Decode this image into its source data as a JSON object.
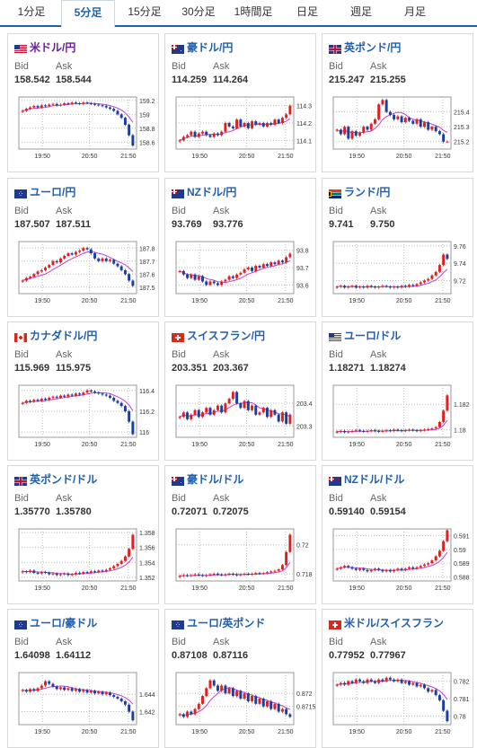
{
  "tabs": [
    {
      "label": "1分足",
      "active": false
    },
    {
      "label": "5分足",
      "active": true
    },
    {
      "label": "15分足",
      "active": false
    },
    {
      "label": "30分足",
      "active": false
    },
    {
      "label": "1時間足",
      "active": false
    },
    {
      "label": "日足",
      "active": false
    },
    {
      "label": "週足",
      "active": false
    },
    {
      "label": "月足",
      "active": false
    }
  ],
  "labels": {
    "bid": "Bid",
    "ask": "Ask"
  },
  "colors": {
    "up": "#e02020",
    "down": "#1a3fa0",
    "ma": "#c040d0",
    "pair_link": "#1f5fb0",
    "pair_highlight": "#6a1b9a"
  },
  "cards": [
    {
      "pair": "米ドル/円",
      "flag": "us",
      "highlight": true,
      "bid": "158.542",
      "ask": "158.544",
      "chart_data": {
        "type": "candlestick",
        "ylim": [
          158.5,
          159.25
        ],
        "yticks": [
          "159.2",
          "159",
          "158.8",
          "158.6"
        ],
        "ytick_values": [
          159.2,
          159.0,
          158.8,
          158.6
        ],
        "xticks": [
          "19:50",
          "20:50",
          "21:50"
        ],
        "close": [
          159.05,
          159.08,
          159.1,
          159.12,
          159.1,
          159.13,
          159.12,
          159.14,
          159.15,
          159.13,
          159.14,
          159.16,
          159.15,
          159.17,
          159.16,
          159.15,
          159.17,
          159.16,
          159.15,
          159.14,
          159.13,
          159.12,
          159.1,
          159.08,
          159.05,
          159.0,
          158.95,
          158.85,
          158.7,
          158.55
        ]
      }
    },
    {
      "pair": "豪ドル/円",
      "flag": "au",
      "highlight": false,
      "bid": "114.259",
      "ask": "114.264",
      "chart_data": {
        "type": "candlestick",
        "ylim": [
          114.05,
          114.35
        ],
        "yticks": [
          "114.3",
          "114.2",
          "114.1"
        ],
        "ytick_values": [
          114.3,
          114.2,
          114.1
        ],
        "xticks": [
          "19:50",
          "20:50",
          "21:50"
        ],
        "close": [
          114.1,
          114.12,
          114.13,
          114.15,
          114.12,
          114.14,
          114.15,
          114.13,
          114.12,
          114.14,
          114.13,
          114.15,
          114.2,
          114.18,
          114.17,
          114.22,
          114.18,
          114.2,
          114.17,
          114.21,
          114.19,
          114.2,
          114.18,
          114.2,
          114.19,
          114.22,
          114.2,
          114.23,
          114.25,
          114.3
        ]
      }
    },
    {
      "pair": "英ポンド/円",
      "flag": "gb",
      "highlight": false,
      "bid": "215.247",
      "ask": "215.255",
      "chart_data": {
        "type": "candlestick",
        "ylim": [
          215.15,
          215.5
        ],
        "yticks": [
          "215.4",
          "215.3",
          "215.2"
        ],
        "ytick_values": [
          215.4,
          215.3,
          215.2
        ],
        "xticks": [
          "19:50",
          "20:50",
          "21:50"
        ],
        "close": [
          215.28,
          215.25,
          215.3,
          215.22,
          215.27,
          215.24,
          215.26,
          215.3,
          215.28,
          215.32,
          215.35,
          215.45,
          215.48,
          215.4,
          215.38,
          215.35,
          215.37,
          215.33,
          215.36,
          215.34,
          215.32,
          215.35,
          215.3,
          215.33,
          215.28,
          215.3,
          215.27,
          215.25,
          215.2,
          215.2
        ]
      }
    },
    {
      "pair": "ユーロ/円",
      "flag": "eu",
      "highlight": false,
      "bid": "187.507",
      "ask": "187.511",
      "chart_data": {
        "type": "candlestick",
        "ylim": [
          187.45,
          187.85
        ],
        "yticks": [
          "187.8",
          "187.7",
          "187.6",
          "187.5"
        ],
        "ytick_values": [
          187.8,
          187.7,
          187.6,
          187.5
        ],
        "xticks": [
          "19:50",
          "20:50",
          "21:50"
        ],
        "close": [
          187.55,
          187.57,
          187.58,
          187.6,
          187.62,
          187.63,
          187.65,
          187.67,
          187.7,
          187.69,
          187.72,
          187.74,
          187.76,
          187.75,
          187.77,
          187.78,
          187.8,
          187.79,
          187.76,
          187.72,
          187.7,
          187.72,
          187.7,
          187.71,
          187.68,
          187.66,
          187.63,
          187.6,
          187.55,
          187.51
        ]
      }
    },
    {
      "pair": "NZドル/円",
      "flag": "nz",
      "highlight": false,
      "bid": "93.769",
      "ask": "93.776",
      "chart_data": {
        "type": "candlestick",
        "ylim": [
          93.55,
          93.85
        ],
        "yticks": [
          "93.8",
          "93.7",
          "93.6"
        ],
        "ytick_values": [
          93.8,
          93.7,
          93.6
        ],
        "xticks": [
          "19:50",
          "20:50",
          "21:50"
        ],
        "close": [
          93.68,
          93.66,
          93.64,
          93.66,
          93.63,
          93.65,
          93.62,
          93.6,
          93.62,
          93.61,
          93.6,
          93.62,
          93.63,
          93.65,
          93.64,
          93.66,
          93.67,
          93.69,
          93.7,
          93.68,
          93.71,
          93.7,
          93.72,
          93.71,
          93.73,
          93.72,
          93.74,
          93.73,
          93.76,
          93.78
        ]
      }
    },
    {
      "pair": "ランド/円",
      "flag": "za",
      "highlight": false,
      "bid": "9.741",
      "ask": "9.750",
      "chart_data": {
        "type": "candlestick",
        "ylim": [
          9.705,
          9.765
        ],
        "yticks": [
          "9.76",
          "9.74",
          "9.72"
        ],
        "ytick_values": [
          9.76,
          9.74,
          9.72
        ],
        "xticks": [
          "19:50",
          "20:50",
          "21:50"
        ],
        "close": [
          9.713,
          9.714,
          9.712,
          9.713,
          9.714,
          9.712,
          9.713,
          9.712,
          9.714,
          9.713,
          9.712,
          9.713,
          9.714,
          9.713,
          9.712,
          9.713,
          9.712,
          9.714,
          9.713,
          9.715,
          9.714,
          9.716,
          9.718,
          9.72,
          9.722,
          9.726,
          9.73,
          9.738,
          9.75,
          9.745
        ]
      }
    },
    {
      "pair": "カナダドル/円",
      "flag": "ca",
      "highlight": false,
      "bid": "115.969",
      "ask": "115.975",
      "chart_data": {
        "type": "candlestick",
        "ylim": [
          115.95,
          116.45
        ],
        "yticks": [
          "116.4",
          "116.2",
          "116"
        ],
        "ytick_values": [
          116.4,
          116.2,
          116.0
        ],
        "xticks": [
          "19:50",
          "20:50",
          "21:50"
        ],
        "close": [
          116.28,
          116.3,
          116.29,
          116.31,
          116.3,
          116.32,
          116.31,
          116.33,
          116.34,
          116.33,
          116.35,
          116.34,
          116.36,
          116.35,
          116.37,
          116.36,
          116.38,
          116.4,
          116.39,
          116.38,
          116.37,
          116.36,
          116.35,
          116.33,
          116.3,
          116.28,
          116.25,
          116.2,
          116.1,
          115.98
        ]
      }
    },
    {
      "pair": "スイスフラン/円",
      "flag": "ch",
      "highlight": false,
      "bid": "203.351",
      "ask": "203.367",
      "chart_data": {
        "type": "candlestick",
        "ylim": [
          203.25,
          203.48
        ],
        "yticks": [
          "203.4",
          "203.3"
        ],
        "ytick_values": [
          203.4,
          203.3
        ],
        "xticks": [
          "19:50",
          "20:50",
          "21:50"
        ],
        "close": [
          203.34,
          203.36,
          203.33,
          203.35,
          203.37,
          203.34,
          203.36,
          203.38,
          203.35,
          203.37,
          203.39,
          203.36,
          203.4,
          203.42,
          203.45,
          203.4,
          203.38,
          203.41,
          203.37,
          203.39,
          203.35,
          203.36,
          203.38,
          203.34,
          203.37,
          203.35,
          203.32,
          203.36,
          203.31,
          203.35
        ]
      }
    },
    {
      "pair": "ユーロ/ドル",
      "flag": "us",
      "highlight": false,
      "bid": "1.18271",
      "ask": "1.18274",
      "chart_data": {
        "type": "candlestick",
        "ylim": [
          1.1794,
          1.1835
        ],
        "yticks": [
          "1.182",
          "1.18"
        ],
        "ytick_values": [
          1.182,
          1.18
        ],
        "xticks": [
          "19:50",
          "20:50",
          "21:50"
        ],
        "close": [
          1.17985,
          1.1799,
          1.1798,
          1.17985,
          1.1799,
          1.17995,
          1.1799,
          1.17985,
          1.1799,
          1.17995,
          1.1799,
          1.17985,
          1.1799,
          1.17995,
          1.1799,
          1.18,
          1.17995,
          1.1799,
          1.17995,
          1.18,
          1.17995,
          1.1799,
          1.17995,
          1.18,
          1.18005,
          1.1801,
          1.1802,
          1.1806,
          1.1815,
          1.1827
        ]
      }
    },
    {
      "pair": "英ポンド/ドル",
      "flag": "gb",
      "highlight": false,
      "bid": "1.35770",
      "ask": "1.35780",
      "chart_data": {
        "type": "candlestick",
        "ylim": [
          1.3515,
          1.3585
        ],
        "yticks": [
          "1.358",
          "1.356",
          "1.354",
          "1.352"
        ],
        "ytick_values": [
          1.358,
          1.356,
          1.354,
          1.352
        ],
        "xticks": [
          "19:50",
          "20:50",
          "21:50"
        ],
        "close": [
          1.3528,
          1.3527,
          1.3529,
          1.3526,
          1.3525,
          1.3527,
          1.3526,
          1.3524,
          1.3525,
          1.3523,
          1.3524,
          1.3525,
          1.3523,
          1.3524,
          1.3526,
          1.3525,
          1.3527,
          1.3526,
          1.3528,
          1.3527,
          1.3529,
          1.3528,
          1.353,
          1.3532,
          1.3535,
          1.3538,
          1.3542,
          1.3548,
          1.3558,
          1.3577
        ]
      }
    },
    {
      "pair": "豪ドル/ドル",
      "flag": "au",
      "highlight": false,
      "bid": "0.72071",
      "ask": "0.72075",
      "chart_data": {
        "type": "candlestick",
        "ylim": [
          0.7175,
          0.7211
        ],
        "yticks": [
          "0.72",
          "0.718"
        ],
        "ytick_values": [
          0.72,
          0.718
        ],
        "xticks": [
          "19:50",
          "20:50",
          "21:50"
        ],
        "close": [
          0.71785,
          0.7179,
          0.71785,
          0.7179,
          0.71795,
          0.7179,
          0.71785,
          0.7179,
          0.71795,
          0.718,
          0.71795,
          0.7179,
          0.71795,
          0.718,
          0.71795,
          0.7179,
          0.71795,
          0.718,
          0.71795,
          0.718,
          0.71805,
          0.718,
          0.71805,
          0.7181,
          0.71815,
          0.7182,
          0.7183,
          0.7186,
          0.7195,
          0.7207
        ]
      }
    },
    {
      "pair": "NZドル/ドル",
      "flag": "nz",
      "highlight": false,
      "bid": "0.59140",
      "ask": "0.59154",
      "chart_data": {
        "type": "candlestick",
        "ylim": [
          0.5877,
          0.5915
        ],
        "yticks": [
          "0.591",
          "0.59",
          "0.589",
          "0.588"
        ],
        "ytick_values": [
          0.591,
          0.59,
          0.589,
          0.588
        ],
        "xticks": [
          "19:50",
          "20:50",
          "21:50"
        ],
        "close": [
          0.5886,
          0.5887,
          0.5888,
          0.5887,
          0.5886,
          0.5885,
          0.5886,
          0.5885,
          0.5884,
          0.5885,
          0.5886,
          0.5885,
          0.5884,
          0.5885,
          0.5884,
          0.5885,
          0.5886,
          0.5885,
          0.5886,
          0.5887,
          0.5886,
          0.5887,
          0.5888,
          0.5889,
          0.589,
          0.5892,
          0.5895,
          0.5899,
          0.5906,
          0.5914
        ]
      }
    },
    {
      "pair": "ユーロ/豪ドル",
      "flag": "eu",
      "highlight": false,
      "bid": "1.64098",
      "ask": "1.64112",
      "chart_data": {
        "type": "candlestick",
        "ylim": [
          1.6405,
          1.6465
        ],
        "yticks": [
          "1.644",
          "1.642"
        ],
        "ytick_values": [
          1.644,
          1.642
        ],
        "xticks": [
          "19:50",
          "20:50",
          "21:50"
        ],
        "close": [
          1.6445,
          1.6443,
          1.6446,
          1.6444,
          1.6447,
          1.645,
          1.6455,
          1.6452,
          1.6449,
          1.6446,
          1.6448,
          1.6445,
          1.6447,
          1.6444,
          1.6446,
          1.6443,
          1.6445,
          1.6442,
          1.6444,
          1.6441,
          1.6443,
          1.644,
          1.6442,
          1.6439,
          1.6437,
          1.6435,
          1.6432,
          1.6428,
          1.642,
          1.641
        ]
      }
    },
    {
      "pair": "ユーロ/英ポンド",
      "flag": "eu",
      "highlight": false,
      "bid": "0.87108",
      "ask": "0.87116",
      "chart_data": {
        "type": "candlestick",
        "ylim": [
          0.8708,
          0.8728
        ],
        "yticks": [
          "0.872",
          "0.8715"
        ],
        "ytick_values": [
          0.872,
          0.8715
        ],
        "xticks": [
          "19:50",
          "20:50",
          "21:50"
        ],
        "close": [
          0.8712,
          0.8711,
          0.8713,
          0.8712,
          0.8714,
          0.8716,
          0.8719,
          0.8722,
          0.8725,
          0.8723,
          0.8721,
          0.8723,
          0.872,
          0.8722,
          0.8719,
          0.8721,
          0.8718,
          0.872,
          0.8717,
          0.8719,
          0.8716,
          0.8718,
          0.8715,
          0.8717,
          0.8714,
          0.8716,
          0.8713,
          0.8714,
          0.8712,
          0.8711
        ]
      }
    },
    {
      "pair": "米ドル/スイスフラン",
      "flag": "ch",
      "highlight": false,
      "bid": "0.77952",
      "ask": "0.77967",
      "chart_data": {
        "type": "candlestick",
        "ylim": [
          0.7795,
          0.7825
        ],
        "yticks": [
          "0.782",
          "0.781",
          "0.78"
        ],
        "ytick_values": [
          0.782,
          0.781,
          0.78
        ],
        "xticks": [
          "19:50",
          "20:50",
          "21:50"
        ],
        "close": [
          0.7818,
          0.7819,
          0.7818,
          0.782,
          0.7819,
          0.7821,
          0.782,
          0.7819,
          0.7821,
          0.782,
          0.7819,
          0.7821,
          0.782,
          0.7822,
          0.7821,
          0.782,
          0.7821,
          0.7819,
          0.782,
          0.7818,
          0.7819,
          0.7817,
          0.7818,
          0.7816,
          0.7814,
          0.7815,
          0.7812,
          0.7809,
          0.7803,
          0.7797
        ]
      }
    }
  ]
}
